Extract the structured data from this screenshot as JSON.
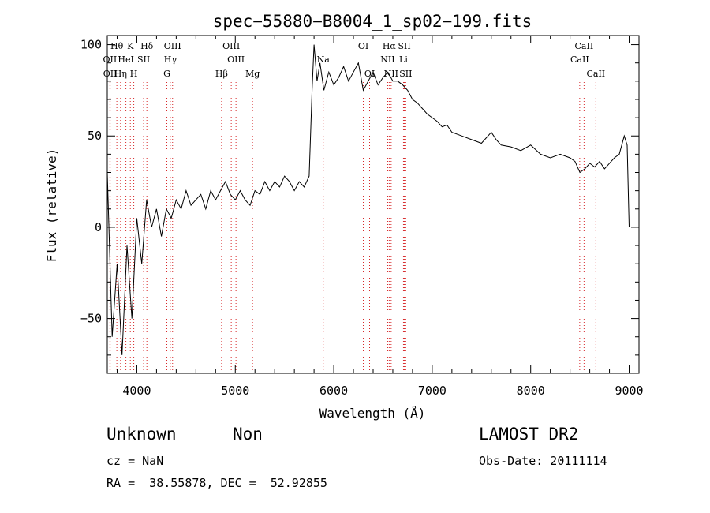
{
  "chart_data": {
    "type": "line",
    "title": "spec−55880−B8004_1_sp02−199.fits",
    "xlabel": "Wavelength (Å)",
    "ylabel": "Flux (relative)",
    "xlim": [
      3700,
      9100
    ],
    "ylim": [
      -80,
      105
    ],
    "x_ticks": [
      4000,
      5000,
      6000,
      7000,
      8000,
      9000
    ],
    "y_ticks": [
      -50,
      0,
      50,
      100
    ],
    "grid": false,
    "line_color": "#000000",
    "marker_line_color": "#d62728",
    "series": [
      {
        "x": [
          3700,
          3750,
          3800,
          3850,
          3900,
          3950,
          4000,
          4050,
          4100,
          4150,
          4200,
          4250,
          4300,
          4350,
          4400,
          4450,
          4500,
          4550,
          4600,
          4650,
          4700,
          4750,
          4800,
          4850,
          4900,
          4950,
          5000,
          5050,
          5100,
          5150,
          5200,
          5250,
          5300,
          5350,
          5400,
          5450,
          5500,
          5550,
          5600,
          5650,
          5700,
          5750,
          5780,
          5800,
          5830,
          5860,
          5900,
          5950,
          6000,
          6050,
          6100,
          6150,
          6200,
          6250,
          6300,
          6350,
          6400,
          6450,
          6500,
          6550,
          6600,
          6650,
          6700,
          6750,
          6800,
          6850,
          6900,
          6950,
          7000,
          7050,
          7100,
          7150,
          7200,
          7300,
          7400,
          7500,
          7600,
          7650,
          7700,
          7800,
          7900,
          8000,
          8100,
          8200,
          8300,
          8400,
          8450,
          8500,
          8550,
          8600,
          8650,
          8700,
          8750,
          8800,
          8850,
          8900,
          8950,
          8980,
          9000
        ],
        "y": [
          30,
          -60,
          -20,
          -70,
          -10,
          -50,
          5,
          -20,
          15,
          0,
          10,
          -5,
          10,
          5,
          15,
          10,
          20,
          12,
          15,
          18,
          10,
          20,
          15,
          20,
          25,
          18,
          15,
          20,
          15,
          12,
          20,
          18,
          25,
          20,
          25,
          22,
          28,
          25,
          20,
          25,
          22,
          28,
          75,
          100,
          80,
          90,
          75,
          85,
          78,
          82,
          88,
          80,
          85,
          90,
          75,
          80,
          85,
          78,
          82,
          85,
          80,
          80,
          78,
          75,
          70,
          68,
          65,
          62,
          60,
          58,
          55,
          56,
          52,
          50,
          48,
          46,
          52,
          48,
          45,
          44,
          42,
          45,
          40,
          38,
          40,
          38,
          36,
          30,
          32,
          35,
          33,
          36,
          32,
          35,
          38,
          40,
          50,
          45,
          0
        ]
      }
    ],
    "line_markers": [
      {
        "label": "Hθ",
        "x": 3797,
        "row": 1
      },
      {
        "label": "OII",
        "x": 3727,
        "row": 2
      },
      {
        "label": "OII",
        "x": 3729,
        "row": 3
      },
      {
        "label": "K",
        "x": 3934,
        "row": 1
      },
      {
        "label": "HeI",
        "x": 3889,
        "row": 2
      },
      {
        "label": "Hη",
        "x": 3835,
        "row": 3
      },
      {
        "label": "H",
        "x": 3969,
        "row": 3
      },
      {
        "label": "SII",
        "x": 4069,
        "row": 2
      },
      {
        "label": "Hδ",
        "x": 4102,
        "row": 1
      },
      {
        "label": "OIII",
        "x": 4363,
        "row": 1
      },
      {
        "label": "Hγ",
        "x": 4340,
        "row": 2
      },
      {
        "label": "G",
        "x": 4305,
        "row": 3
      },
      {
        "label": "OIII",
        "x": 4959,
        "row": 1
      },
      {
        "label": "OIII",
        "x": 5007,
        "row": 2
      },
      {
        "label": "Hβ",
        "x": 4861,
        "row": 3
      },
      {
        "label": "Mg",
        "x": 5175,
        "row": 3
      },
      {
        "label": "Na",
        "x": 5893,
        "row": 2
      },
      {
        "label": "OI",
        "x": 6300,
        "row": 1
      },
      {
        "label": "OI",
        "x": 6364,
        "row": 3
      },
      {
        "label": "Hα",
        "x": 6563,
        "row": 1
      },
      {
        "label": "NII",
        "x": 6548,
        "row": 2
      },
      {
        "label": "NII",
        "x": 6583,
        "row": 3
      },
      {
        "label": "SII",
        "x": 6717,
        "row": 1
      },
      {
        "label": "Li",
        "x": 6708,
        "row": 2
      },
      {
        "label": "SII",
        "x": 6731,
        "row": 3
      },
      {
        "label": "CaII",
        "x": 8542,
        "row": 1
      },
      {
        "label": "CaII",
        "x": 8498,
        "row": 2
      },
      {
        "label": "CaII",
        "x": 8662,
        "row": 3
      }
    ]
  },
  "info": {
    "obj_class": "Unknown",
    "obj_subclass": "Non",
    "survey": "LAMOST DR2",
    "cz": "cz = NaN",
    "obs_date": "Obs-Date: 20111114",
    "radec": "RA =  38.55878, DEC =  52.92855"
  }
}
